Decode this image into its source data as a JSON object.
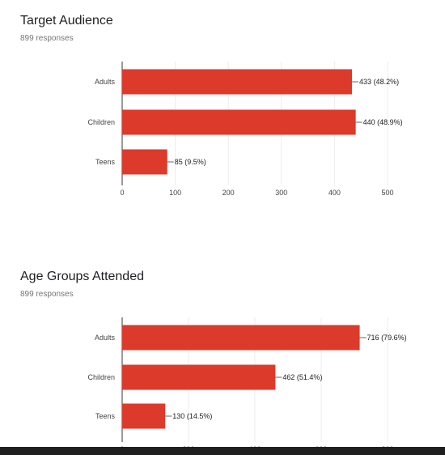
{
  "chart_data": [
    {
      "type": "bar",
      "orientation": "horizontal",
      "title": "Target Audience",
      "subtitle": "899 responses",
      "categories": [
        "Adults",
        "Children",
        "Teens"
      ],
      "values": [
        433,
        440,
        85
      ],
      "data_labels": [
        "433 (48.2%)",
        "440 (48.9%)",
        "85 (9.5%)"
      ],
      "xlim": [
        0,
        500
      ],
      "xticks": [
        "0",
        "100",
        "200",
        "300",
        "400",
        "500"
      ],
      "grid": true,
      "color": "#dc3a2b"
    },
    {
      "type": "bar",
      "orientation": "horizontal",
      "title": "Age Groups Attended",
      "subtitle": "899 responses",
      "categories": [
        "Adults",
        "Children",
        "Teens"
      ],
      "values": [
        716,
        462,
        130
      ],
      "data_labels": [
        "716 (79.6%)",
        "462 (51.4%)",
        "130 (14.5%)"
      ],
      "xlim": [
        0,
        800
      ],
      "xticks": [
        "0",
        "200",
        "400",
        "600",
        "800"
      ],
      "grid": true,
      "color": "#dc3a2b"
    }
  ]
}
